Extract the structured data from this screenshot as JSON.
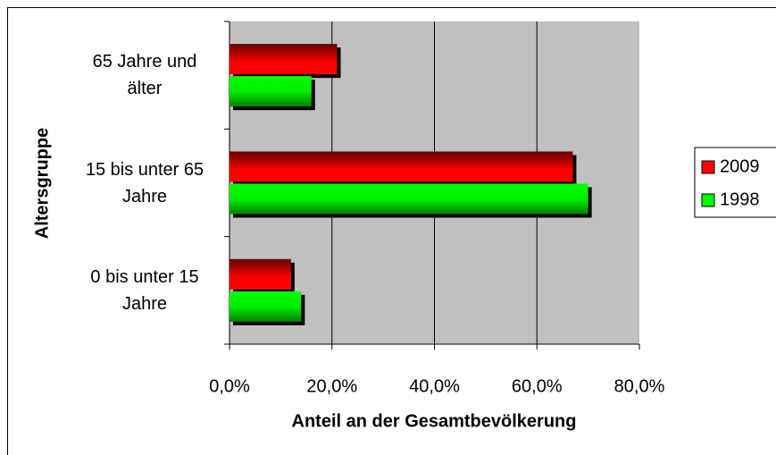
{
  "chart_data": {
    "type": "barh",
    "x_label": "Anteil an der Gesamtbevölkerung",
    "y_label": "Altersgruppe",
    "categories": [
      "0 bis unter 15 Jahre",
      "15 bis unter 65 Jahre",
      "65 Jahre und älter"
    ],
    "series": [
      {
        "name": "2009",
        "color": "#ff0000",
        "values": [
          12,
          67,
          21
        ]
      },
      {
        "name": "1998",
        "color": "#00ff00",
        "values": [
          14,
          70,
          16
        ]
      }
    ],
    "xlim": [
      0,
      80
    ],
    "xticks": [
      {
        "value": 0,
        "label": "0,0%"
      },
      {
        "value": 20,
        "label": "20,0%"
      },
      {
        "value": 40,
        "label": "40,0%"
      },
      {
        "value": 60,
        "label": "60,0%"
      },
      {
        "value": 80,
        "label": "80,0%"
      }
    ],
    "grid": true,
    "legend": "right"
  }
}
